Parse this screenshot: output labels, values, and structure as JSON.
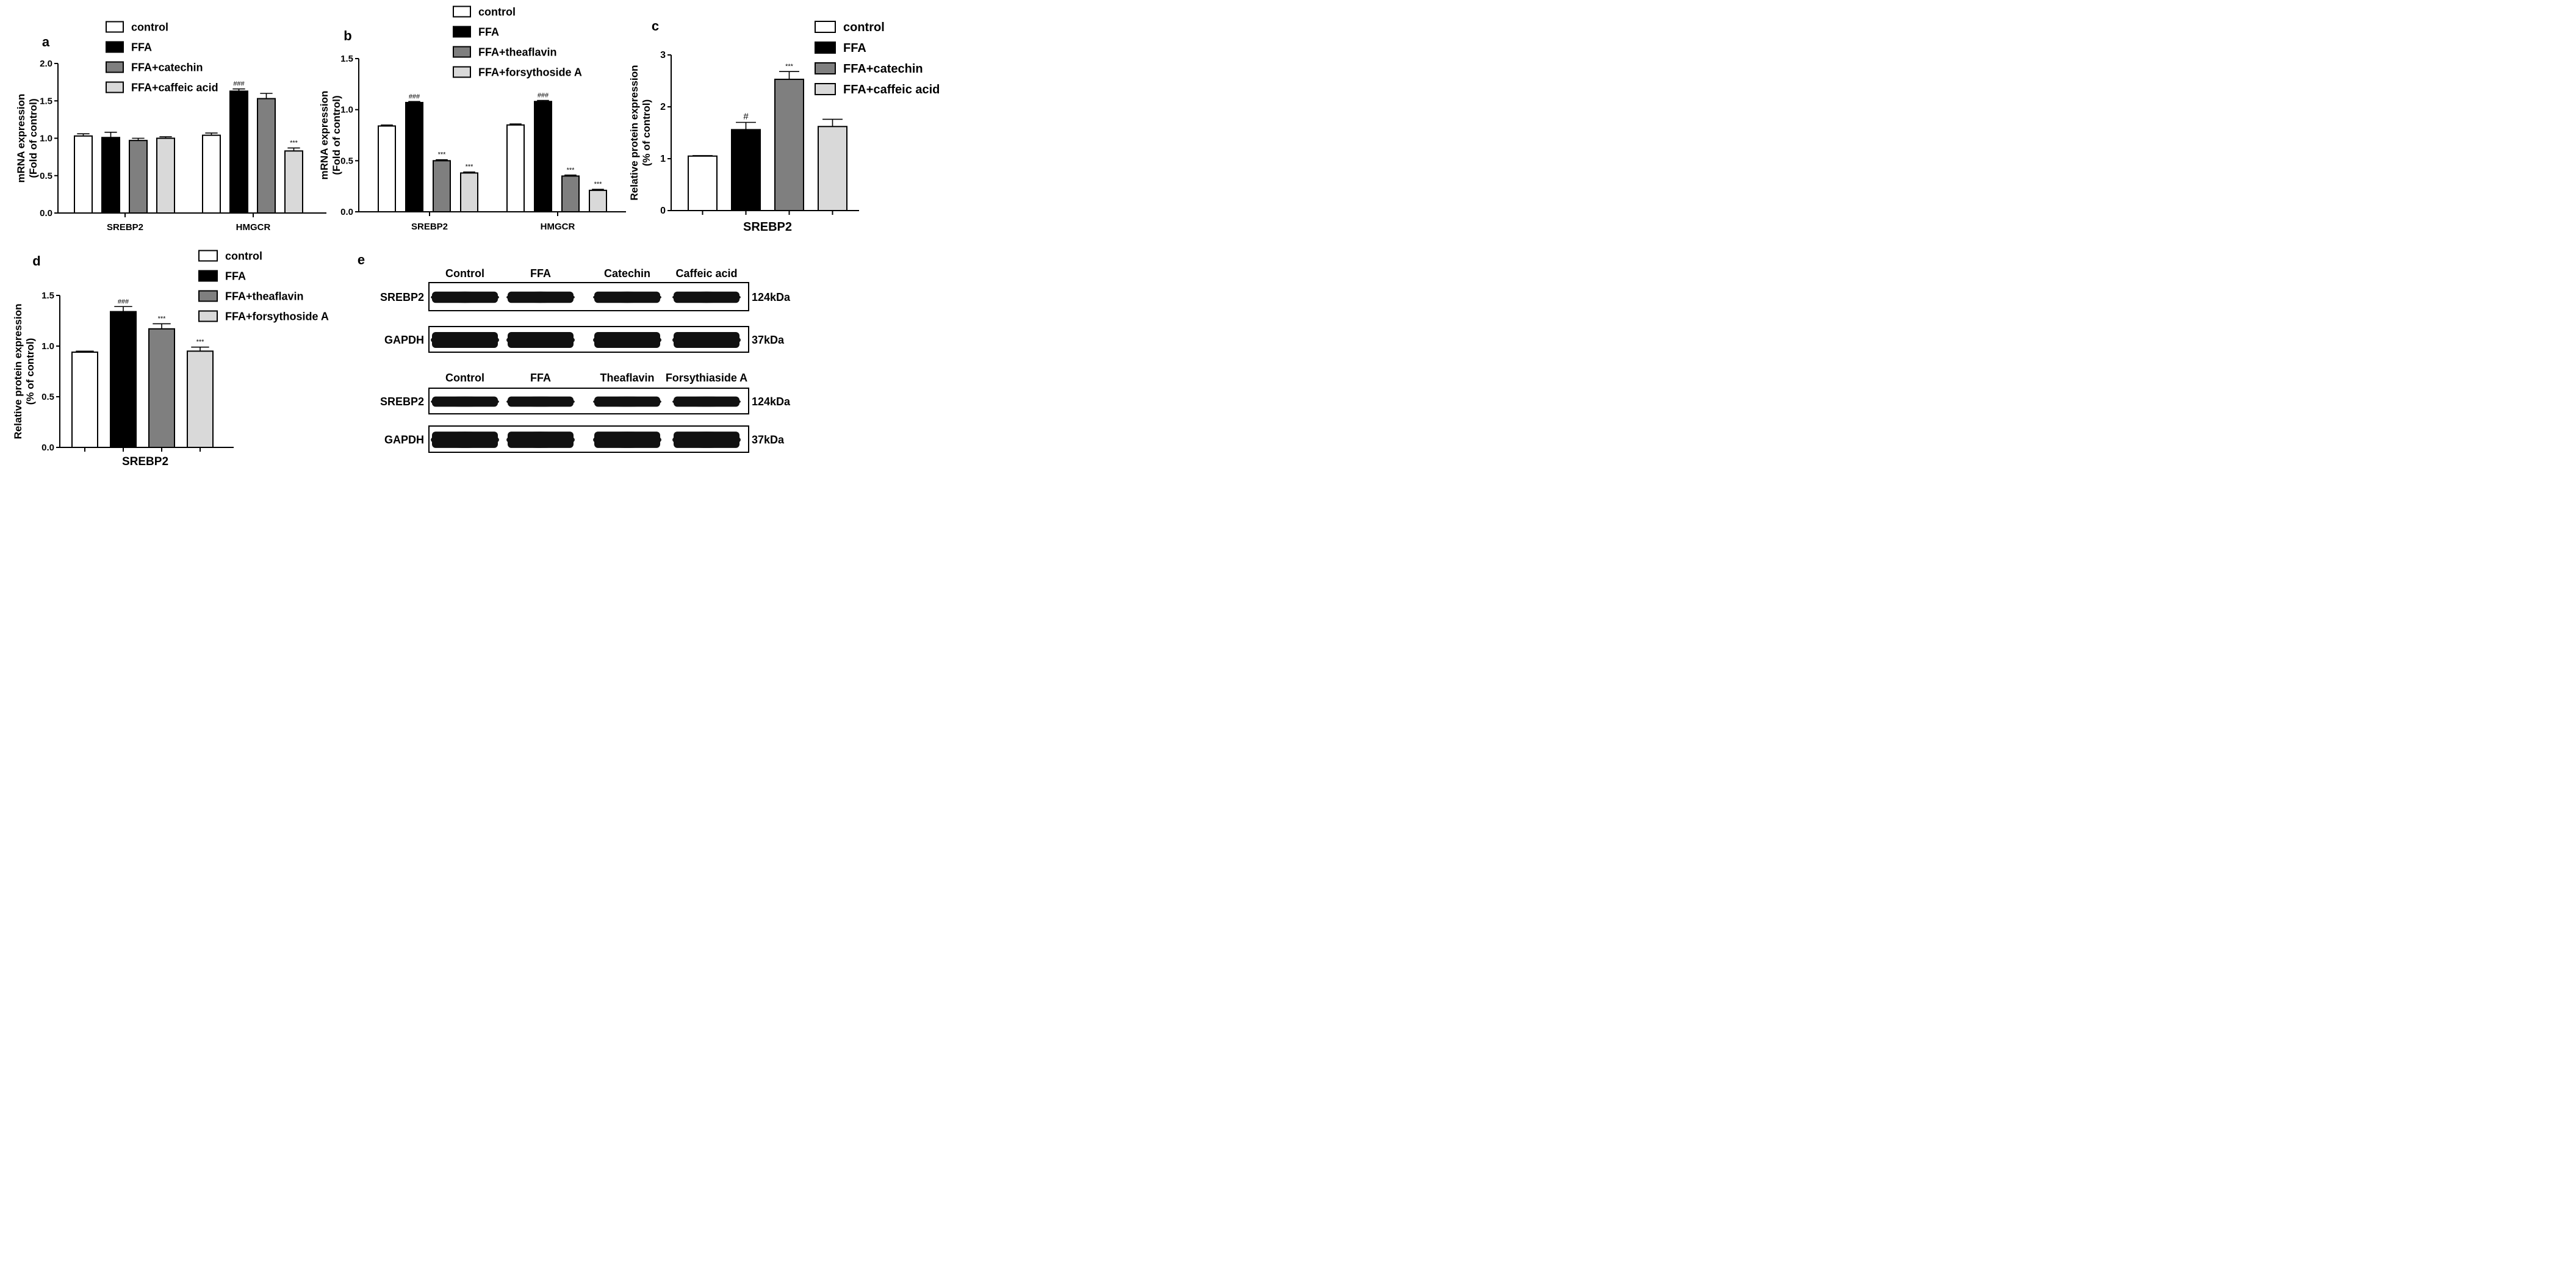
{
  "fill_colors": {
    "control": "#ffffff",
    "FFA": "#000000",
    "FFA+catechin": "#7f7f7f",
    "FFA+caffeic acid": "#d9d9d9",
    "FFA+theaflavin": "#7f7f7f",
    "FFA+forsythoside A": "#d9d9d9"
  },
  "chart_data": [
    {
      "panel": "a",
      "type": "bar",
      "ylabel": "mRNA expression\n(Fold of control)",
      "ylim": [
        0,
        2.0
      ],
      "yticks": [
        "0.0",
        "0.5",
        "1.0",
        "1.5",
        "2.0"
      ],
      "categories": [
        "SREBP2",
        "HMGCR"
      ],
      "legend_position": "top",
      "series": [
        {
          "name": "control",
          "values": [
            1.03,
            1.04
          ],
          "errors": [
            0.03,
            0.03
          ],
          "marks": [
            "",
            ""
          ]
        },
        {
          "name": "FFA",
          "values": [
            1.01,
            1.63
          ],
          "errors": [
            0.07,
            0.03
          ],
          "marks": [
            "",
            "###"
          ]
        },
        {
          "name": "FFA+catechin",
          "values": [
            0.97,
            1.53
          ],
          "errors": [
            0.03,
            0.07
          ],
          "marks": [
            "",
            ""
          ]
        },
        {
          "name": "FFA+caffeic acid",
          "values": [
            1.0,
            0.83
          ],
          "errors": [
            0.02,
            0.04
          ],
          "marks": [
            "",
            "***"
          ]
        }
      ]
    },
    {
      "panel": "b",
      "type": "bar",
      "ylabel": "mRNA expression\n(Fold of control)",
      "ylim": [
        0,
        1.5
      ],
      "yticks": [
        "0.0",
        "0.5",
        "1.0",
        "1.5"
      ],
      "categories": [
        "SREBP2",
        "HMGCR"
      ],
      "legend_position": "top",
      "series": [
        {
          "name": "control",
          "values": [
            0.84,
            0.85
          ],
          "errors": [
            0.01,
            0.01
          ],
          "marks": [
            "",
            ""
          ]
        },
        {
          "name": "FFA",
          "values": [
            1.07,
            1.08
          ],
          "errors": [
            0.01,
            0.01
          ],
          "marks": [
            "###",
            "###"
          ]
        },
        {
          "name": "FFA+theaflavin",
          "values": [
            0.5,
            0.35
          ],
          "errors": [
            0.01,
            0.01
          ],
          "marks": [
            "***",
            "***"
          ]
        },
        {
          "name": "FFA+forsythoside A",
          "values": [
            0.38,
            0.21
          ],
          "errors": [
            0.01,
            0.01
          ],
          "marks": [
            "***",
            "***"
          ]
        }
      ]
    },
    {
      "panel": "c",
      "type": "bar",
      "ylabel": "Relative protein expression\n(% of control)",
      "ylim": [
        0,
        3
      ],
      "yticks": [
        "0",
        "1",
        "2",
        "3"
      ],
      "categories": [
        "SREBP2"
      ],
      "legend_position": "top-right",
      "series": [
        {
          "name": "control",
          "values": [
            1.05
          ],
          "errors": [
            0.01
          ],
          "marks": [
            ""
          ]
        },
        {
          "name": "FFA",
          "values": [
            1.56
          ],
          "errors": [
            0.14
          ],
          "marks": [
            "#"
          ]
        },
        {
          "name": "FFA+catechin",
          "values": [
            2.53
          ],
          "errors": [
            0.15
          ],
          "marks": [
            "***"
          ]
        },
        {
          "name": "FFA+caffeic acid",
          "values": [
            1.62
          ],
          "errors": [
            0.14
          ],
          "marks": [
            ""
          ]
        }
      ]
    },
    {
      "panel": "d",
      "type": "bar",
      "ylabel": "Relative protein expression\n(% of control)",
      "ylim": [
        0,
        1.5
      ],
      "yticks": [
        "0.0",
        "0.5",
        "1.0",
        "1.5"
      ],
      "categories": [
        "SREBP2"
      ],
      "legend_position": "top-right",
      "series": [
        {
          "name": "control",
          "values": [
            0.94
          ],
          "errors": [
            0.01
          ],
          "marks": [
            ""
          ]
        },
        {
          "name": "FFA",
          "values": [
            1.34
          ],
          "errors": [
            0.05
          ],
          "marks": [
            "###"
          ]
        },
        {
          "name": "FFA+theaflavin",
          "values": [
            1.17
          ],
          "errors": [
            0.05
          ],
          "marks": [
            "***"
          ]
        },
        {
          "name": "FFA+forsythoside A",
          "values": [
            0.95
          ],
          "errors": [
            0.04
          ],
          "marks": [
            "***"
          ]
        }
      ]
    }
  ],
  "blot": {
    "panel": "e",
    "groups": [
      {
        "lanes": [
          "Control",
          "FFA",
          "Catechin",
          "Caffeic acid"
        ],
        "rows": [
          {
            "protein": "SREBP2",
            "size": "124kDa"
          },
          {
            "protein": "GAPDH",
            "size": "37kDa"
          }
        ]
      },
      {
        "lanes": [
          "Control",
          "FFA",
          "Theaflavin",
          "Forsythiaside A"
        ],
        "rows": [
          {
            "protein": "SREBP2",
            "size": "124kDa"
          },
          {
            "protein": "GAPDH",
            "size": "37kDa"
          }
        ]
      }
    ]
  }
}
